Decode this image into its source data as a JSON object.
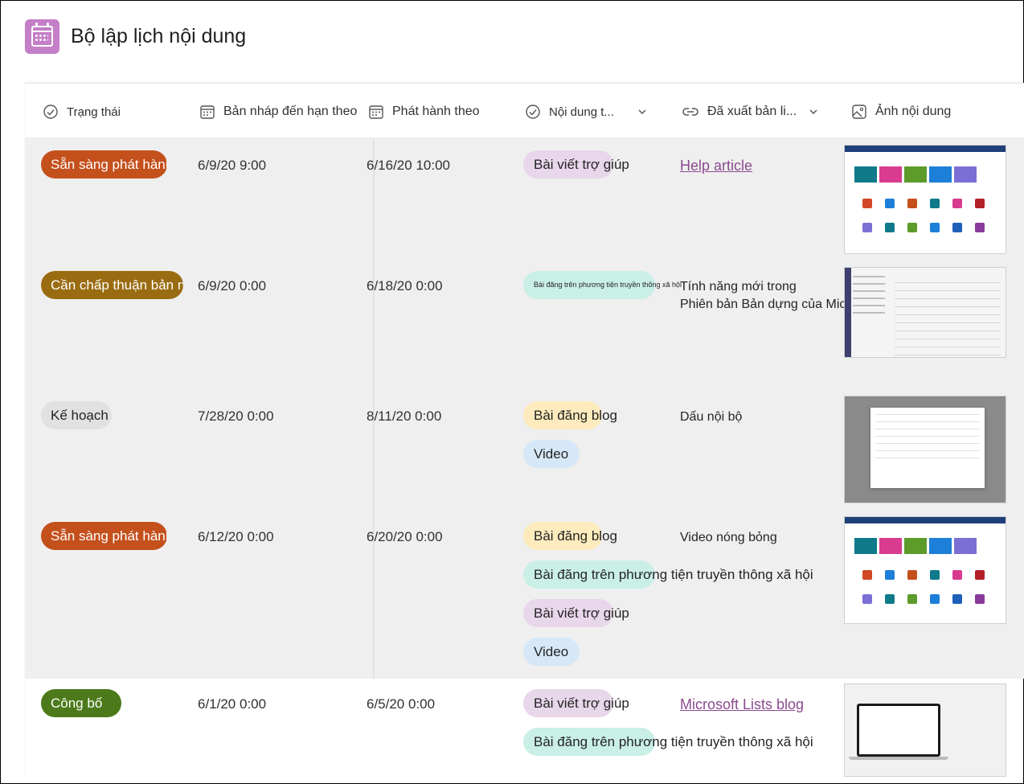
{
  "app": {
    "title": "Bộ lập lịch nội dung",
    "icon": "calendar-icon",
    "icon_color": "#c47fc8"
  },
  "columns": [
    {
      "label": "Trạng thái",
      "icon": "status-check-icon"
    },
    {
      "label": "Bản nháp đến hạn theo",
      "icon": "calendar-icon"
    },
    {
      "label": "Phát hành theo",
      "icon": "calendar-icon"
    },
    {
      "label": "Nội dung t...",
      "icon": "status-check-icon",
      "dropdown": "chevron-down-icon"
    },
    {
      "label": "Đã xuất bản li...",
      "icon": "link-icon",
      "dropdown": "chevron-down-icon"
    },
    {
      "label": "Ảnh nội dung",
      "icon": "image-icon"
    }
  ],
  "rows": [
    {
      "status": "Sẵn sàng phát hành",
      "draft_due": "6/9/20 9:00",
      "publish_by": "6/16/20 10:00",
      "content_types": [
        "Bài viết trợ giúp"
      ],
      "published_link": "Help article"
    },
    {
      "status": "Cần chấp thuận bản nháp",
      "draft_due": "6/9/20 0:00",
      "publish_by": "6/18/20 0:00",
      "content_types": [
        "Bài đăng trên phương tiện truyền thông xã hội"
      ],
      "published_text_line1": "Tính năng mới trong",
      "published_text_line2": "Phiên bản Bản dựng của Microsoft"
    },
    {
      "status": "Kế hoạch",
      "draft_due": "7/28/20 0:00",
      "publish_by": "8/11/20 0:00",
      "content_types": [
        "Bài đăng blog",
        "Video"
      ],
      "published_text_line1": "Dấu nội bộ"
    },
    {
      "status": "Sẵn sàng phát hành",
      "draft_due": "6/12/20 0:00",
      "publish_by": "6/20/20 0:00",
      "content_types": [
        "Bài đăng blog",
        "Bài đăng trên phương tiện truyền thông xã hội",
        "Bài viết trợ giúp",
        "Video"
      ],
      "published_text_line1": "Video nóng bỏng"
    },
    {
      "status": "Công bố",
      "draft_due": "6/1/20 0:00",
      "publish_by": "6/5/20 0:00",
      "content_types": [
        "Bài viết trợ giúp",
        "Bài đăng trên phương tiện truyền thông xã hội"
      ],
      "published_link": "Microsoft Lists blog"
    }
  ],
  "colors": {
    "status_ready": "#c4501c",
    "status_approval": "#9a6c12",
    "status_plan": "#e1e1e1",
    "status_published": "#4c7a1a",
    "tag_help": "#e8d6ea",
    "tag_social": "#c9efe7",
    "tag_blog": "#fdebbd",
    "tag_video": "#d6e8f7",
    "link": "#8a4b8e"
  }
}
